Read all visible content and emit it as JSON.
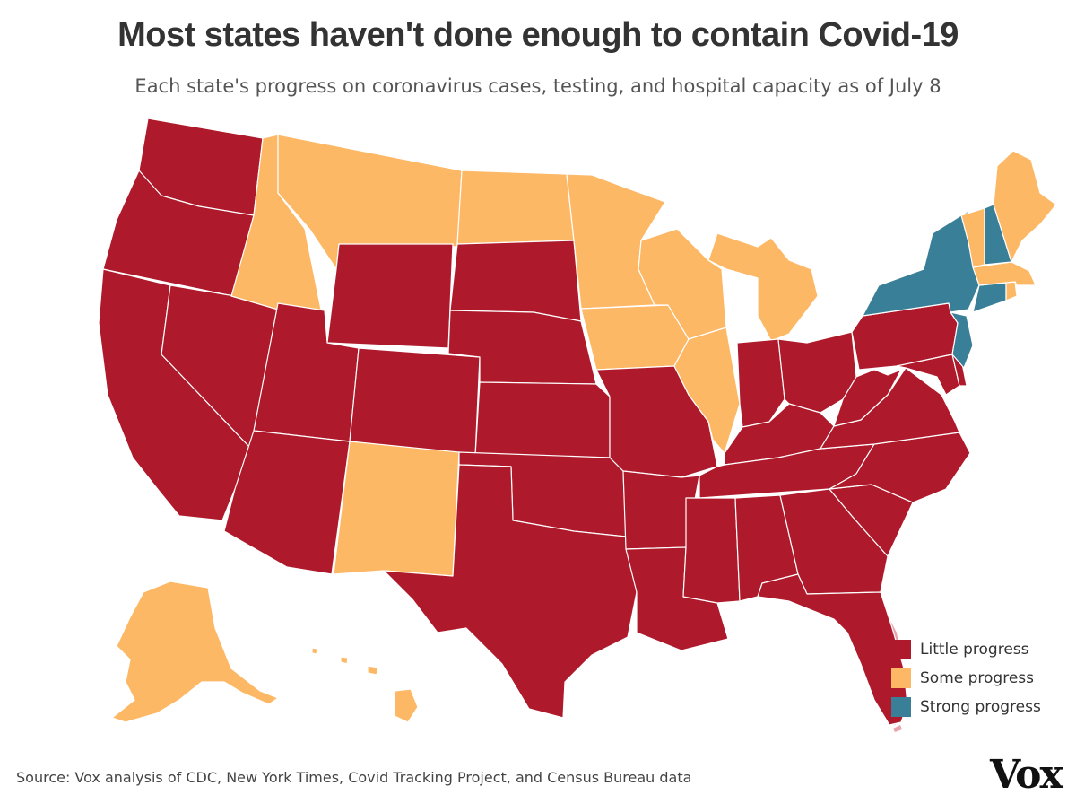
{
  "header": {
    "title": "Most states haven't done enough to contain Covid-19",
    "subtitle": "Each state's progress on coronavirus cases, testing, and hospital capacity as of July 8"
  },
  "colors": {
    "little": "#AE1A2B",
    "some": "#FDB866",
    "strong": "#3A7F98",
    "highlight": "#E8A3AD"
  },
  "legend": [
    {
      "key": "little",
      "label": "Little progress"
    },
    {
      "key": "some",
      "label": "Some progress"
    },
    {
      "key": "strong",
      "label": "Strong progress"
    }
  ],
  "states": [
    {
      "name": "Washington",
      "status": "little"
    },
    {
      "name": "Oregon",
      "status": "little"
    },
    {
      "name": "California",
      "status": "little"
    },
    {
      "name": "Nevada",
      "status": "little"
    },
    {
      "name": "Idaho",
      "status": "some"
    },
    {
      "name": "Montana",
      "status": "some"
    },
    {
      "name": "Wyoming",
      "status": "little"
    },
    {
      "name": "Utah",
      "status": "little"
    },
    {
      "name": "Arizona",
      "status": "little"
    },
    {
      "name": "Colorado",
      "status": "little"
    },
    {
      "name": "New Mexico",
      "status": "some"
    },
    {
      "name": "North Dakota",
      "status": "some"
    },
    {
      "name": "South Dakota",
      "status": "little"
    },
    {
      "name": "Nebraska",
      "status": "little"
    },
    {
      "name": "Kansas",
      "status": "little"
    },
    {
      "name": "Oklahoma",
      "status": "little"
    },
    {
      "name": "Texas",
      "status": "little"
    },
    {
      "name": "Minnesota",
      "status": "some"
    },
    {
      "name": "Iowa",
      "status": "some"
    },
    {
      "name": "Missouri",
      "status": "little"
    },
    {
      "name": "Arkansas",
      "status": "little"
    },
    {
      "name": "Louisiana",
      "status": "little"
    },
    {
      "name": "Wisconsin",
      "status": "some"
    },
    {
      "name": "Illinois",
      "status": "some"
    },
    {
      "name": "Michigan",
      "status": "some"
    },
    {
      "name": "Indiana",
      "status": "little"
    },
    {
      "name": "Ohio",
      "status": "little"
    },
    {
      "name": "Kentucky",
      "status": "little"
    },
    {
      "name": "Tennessee",
      "status": "little"
    },
    {
      "name": "Mississippi",
      "status": "little"
    },
    {
      "name": "Alabama",
      "status": "little"
    },
    {
      "name": "Georgia",
      "status": "little"
    },
    {
      "name": "Florida",
      "status": "little"
    },
    {
      "name": "South Carolina",
      "status": "little"
    },
    {
      "name": "North Carolina",
      "status": "little"
    },
    {
      "name": "Virginia",
      "status": "little"
    },
    {
      "name": "West Virginia",
      "status": "little"
    },
    {
      "name": "Maryland",
      "status": "little"
    },
    {
      "name": "Delaware",
      "status": "little"
    },
    {
      "name": "Pennsylvania",
      "status": "little"
    },
    {
      "name": "New Jersey",
      "status": "strong"
    },
    {
      "name": "New York",
      "status": "strong"
    },
    {
      "name": "Connecticut",
      "status": "strong"
    },
    {
      "name": "Rhode Island",
      "status": "some"
    },
    {
      "name": "Massachusetts",
      "status": "some"
    },
    {
      "name": "Vermont",
      "status": "some"
    },
    {
      "name": "New Hampshire",
      "status": "strong"
    },
    {
      "name": "Maine",
      "status": "some"
    },
    {
      "name": "Alaska",
      "status": "some"
    },
    {
      "name": "Hawaii",
      "status": "some"
    }
  ],
  "footer": {
    "source": "Source: Vox analysis of CDC, New York Times, Covid Tracking Project, and Census Bureau data",
    "logo": "Vox"
  }
}
